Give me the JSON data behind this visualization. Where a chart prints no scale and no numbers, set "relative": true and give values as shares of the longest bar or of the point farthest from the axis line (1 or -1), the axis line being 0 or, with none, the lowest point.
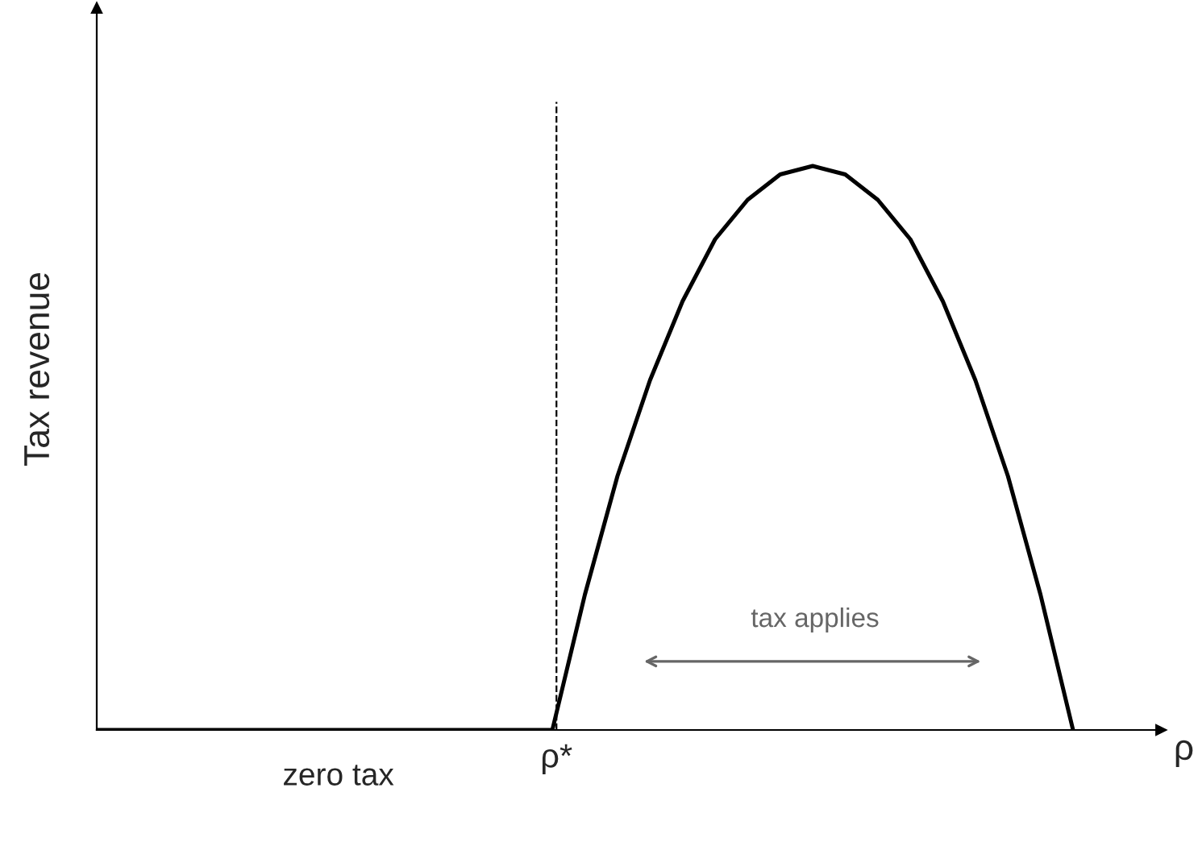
{
  "chart_data": {
    "type": "line",
    "relative": true,
    "xlabel": "ρ",
    "ylabel": "Tax revenue",
    "categories": [
      null,
      null,
      null,
      null,
      null,
      null,
      null,
      null,
      null,
      null,
      null,
      null,
      null,
      null,
      null,
      null,
      null,
      null,
      null,
      null,
      null,
      null,
      null,
      null,
      null,
      null,
      null,
      null,
      null,
      null,
      null
    ],
    "series": [
      {
        "color": "#000000",
        "values": [
          0,
          0,
          0,
          0,
          0,
          0,
          0,
          0,
          0,
          0,
          0,
          0,
          0,
          0,
          0,
          0.24,
          0.45,
          0.62,
          0.76,
          0.87,
          0.94,
          0.985,
          1,
          0.985,
          0.94,
          0.87,
          0.76,
          0.62,
          0.45,
          0.24,
          0
        ]
      }
    ],
    "annotations": [
      "ρ*",
      "zero tax",
      "tax applies"
    ],
    "marker": "none",
    "line_style": "solid"
  }
}
